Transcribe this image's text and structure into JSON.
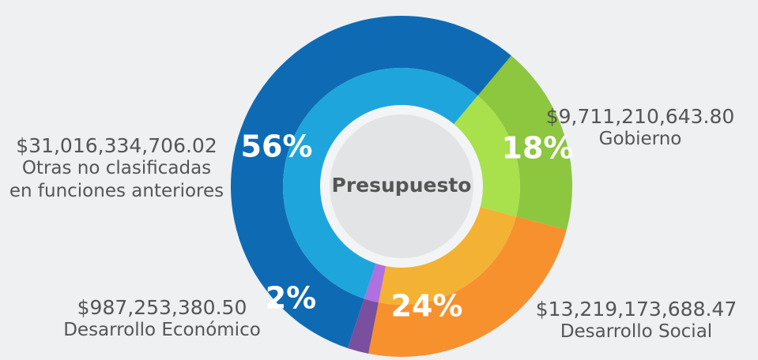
{
  "chart_data": {
    "type": "donut",
    "center_label": "Presupuesto",
    "categories": [
      "Gobierno",
      "Desarrollo Social",
      "Desarrollo Económico",
      "Otras no clasificadas en funciones anteriores"
    ],
    "values": [
      18,
      24,
      2,
      56
    ],
    "value_labels": [
      "18%",
      "24%",
      "2%",
      "56%"
    ],
    "amounts": [
      9711210643.8,
      13219173688.47,
      987253380.5,
      31016334706.02
    ],
    "amount_labels": [
      "$9,711,210,643.80",
      "$13,219,173,688.47",
      "$987,253,380.50",
      "$31,016,334,706.02"
    ],
    "colors": [
      "#8dc63f",
      "#f7912d",
      "#7a4fa0",
      "#0f6ab4"
    ],
    "inner_colors": [
      "#a8e14b",
      "#f4b234",
      "#b070e0",
      "#1ea6dc"
    ]
  }
}
